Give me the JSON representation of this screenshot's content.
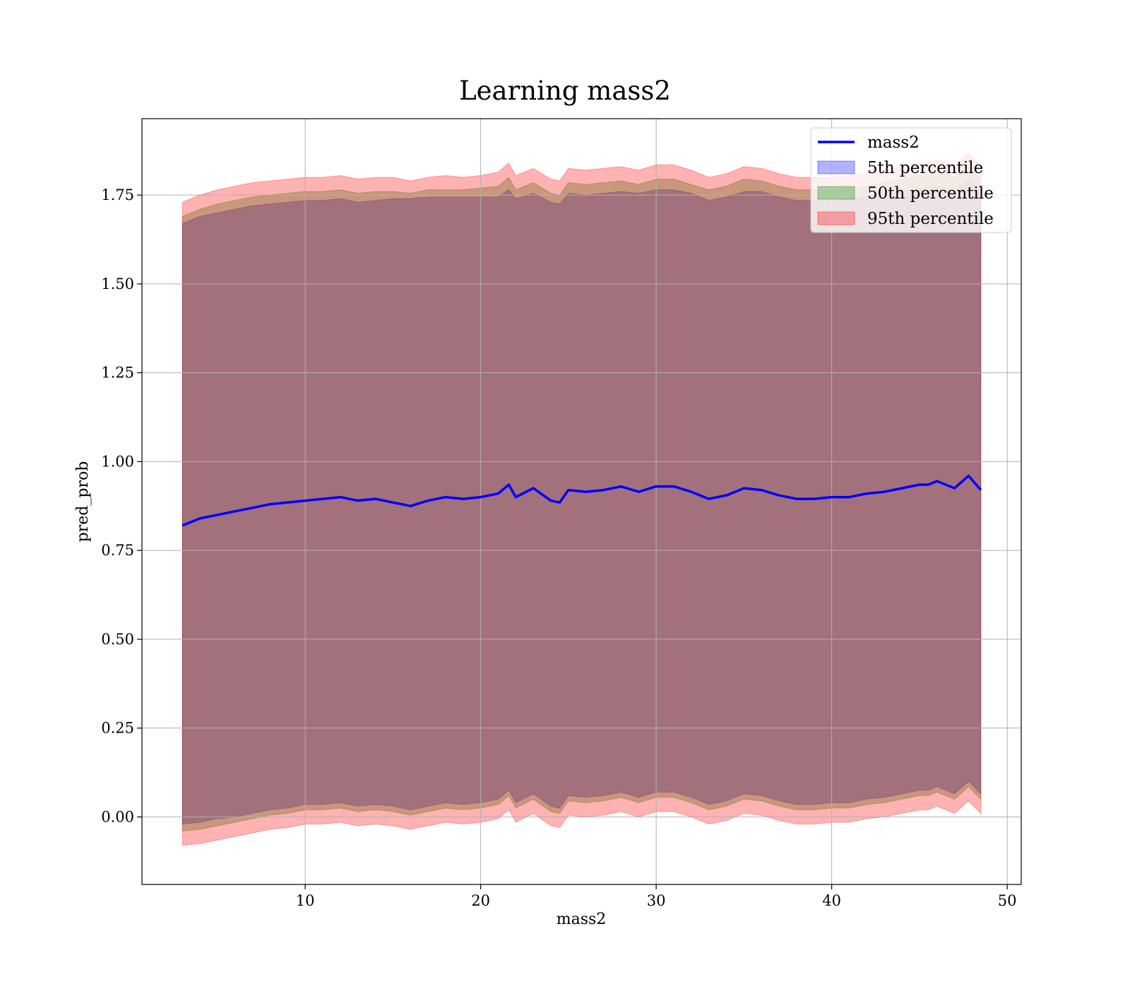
{
  "chart_data": {
    "type": "line",
    "title": "Learning mass2",
    "xlabel": "mass2",
    "ylabel": "pred_prob",
    "xlim": [
      0.7,
      50.8
    ],
    "ylim": [
      -0.19,
      1.965
    ],
    "x_ticks": [
      10,
      20,
      30,
      40,
      50
    ],
    "y_ticks": [
      0.0,
      0.25,
      0.5,
      0.75,
      1.0,
      1.25,
      1.5,
      1.75
    ],
    "x_tick_labels": [
      "10",
      "20",
      "30",
      "40",
      "50"
    ],
    "y_tick_labels": [
      "0.00",
      "0.25",
      "0.50",
      "0.75",
      "1.00",
      "1.25",
      "1.50",
      "1.75"
    ],
    "grid": true,
    "legend_position": "top-right",
    "x": [
      3.0,
      4.0,
      5.0,
      6.0,
      7.0,
      8.0,
      9.0,
      10.0,
      11.0,
      12.0,
      13.0,
      14.0,
      15.0,
      16.0,
      17.0,
      18.0,
      19.0,
      20.0,
      21.0,
      21.6,
      22.0,
      23.0,
      24.0,
      24.5,
      25.0,
      26.0,
      27.0,
      28.0,
      29.0,
      30.0,
      31.0,
      32.0,
      33.0,
      34.0,
      35.0,
      36.0,
      37.0,
      38.0,
      39.0,
      40.0,
      41.0,
      42.0,
      43.0,
      44.0,
      45.0,
      45.5,
      46.0,
      47.0,
      47.8,
      48.5
    ],
    "series": [
      {
        "name": "mass2",
        "style": "line",
        "color": "#0000ff",
        "values": [
          0.82,
          0.84,
          0.85,
          0.86,
          0.87,
          0.88,
          0.885,
          0.89,
          0.895,
          0.9,
          0.89,
          0.895,
          0.885,
          0.875,
          0.89,
          0.9,
          0.895,
          0.9,
          0.91,
          0.935,
          0.9,
          0.925,
          0.89,
          0.885,
          0.92,
          0.915,
          0.92,
          0.93,
          0.915,
          0.93,
          0.93,
          0.915,
          0.895,
          0.905,
          0.925,
          0.92,
          0.905,
          0.895,
          0.895,
          0.9,
          0.9,
          0.91,
          0.915,
          0.925,
          0.935,
          0.935,
          0.945,
          0.925,
          0.96,
          0.92
        ]
      },
      {
        "name": "5th percentile",
        "style": "band",
        "color": "#0000ff",
        "upper": [
          1.67,
          1.69,
          1.7,
          1.71,
          1.72,
          1.725,
          1.73,
          1.735,
          1.735,
          1.74,
          1.73,
          1.735,
          1.74,
          1.74,
          1.745,
          1.745,
          1.745,
          1.745,
          1.745,
          1.765,
          1.74,
          1.755,
          1.73,
          1.725,
          1.755,
          1.75,
          1.755,
          1.76,
          1.755,
          1.765,
          1.765,
          1.755,
          1.735,
          1.745,
          1.76,
          1.76,
          1.745,
          1.735,
          1.735,
          1.735,
          1.74,
          1.745,
          1.75,
          1.76,
          1.77,
          1.77,
          1.775,
          1.76,
          1.795,
          1.76
        ],
        "lower": [
          -0.02,
          -0.015,
          -0.005,
          0.0,
          0.01,
          0.02,
          0.025,
          0.035,
          0.035,
          0.04,
          0.03,
          0.035,
          0.03,
          0.02,
          0.03,
          0.04,
          0.035,
          0.04,
          0.05,
          0.075,
          0.04,
          0.065,
          0.03,
          0.025,
          0.06,
          0.055,
          0.06,
          0.07,
          0.055,
          0.07,
          0.07,
          0.055,
          0.035,
          0.045,
          0.065,
          0.06,
          0.045,
          0.035,
          0.035,
          0.04,
          0.04,
          0.05,
          0.055,
          0.065,
          0.075,
          0.075,
          0.085,
          0.065,
          0.1,
          0.065
        ]
      },
      {
        "name": "50th percentile",
        "style": "band",
        "color": "#008000",
        "upper": [
          1.69,
          1.71,
          1.725,
          1.735,
          1.745,
          1.75,
          1.755,
          1.76,
          1.76,
          1.765,
          1.755,
          1.76,
          1.76,
          1.755,
          1.765,
          1.765,
          1.765,
          1.77,
          1.775,
          1.8,
          1.765,
          1.785,
          1.755,
          1.75,
          1.785,
          1.78,
          1.785,
          1.79,
          1.78,
          1.795,
          1.795,
          1.78,
          1.765,
          1.775,
          1.795,
          1.79,
          1.775,
          1.765,
          1.765,
          1.765,
          1.77,
          1.775,
          1.785,
          1.795,
          1.805,
          1.805,
          1.815,
          1.8,
          1.83,
          1.795
        ],
        "lower": [
          -0.04,
          -0.035,
          -0.025,
          -0.015,
          -0.005,
          0.005,
          0.01,
          0.02,
          0.02,
          0.025,
          0.015,
          0.02,
          0.015,
          0.005,
          0.015,
          0.025,
          0.02,
          0.025,
          0.035,
          0.06,
          0.025,
          0.05,
          0.015,
          0.01,
          0.045,
          0.04,
          0.045,
          0.055,
          0.04,
          0.055,
          0.055,
          0.04,
          0.02,
          0.03,
          0.05,
          0.045,
          0.03,
          0.02,
          0.02,
          0.025,
          0.025,
          0.035,
          0.04,
          0.05,
          0.06,
          0.06,
          0.07,
          0.05,
          0.085,
          0.05
        ]
      },
      {
        "name": "95th percentile",
        "style": "band",
        "color": "#ff0000",
        "upper": [
          1.73,
          1.75,
          1.765,
          1.775,
          1.785,
          1.79,
          1.795,
          1.8,
          1.8,
          1.805,
          1.795,
          1.8,
          1.8,
          1.79,
          1.8,
          1.805,
          1.8,
          1.805,
          1.815,
          1.84,
          1.805,
          1.825,
          1.795,
          1.79,
          1.825,
          1.82,
          1.825,
          1.83,
          1.82,
          1.835,
          1.835,
          1.82,
          1.8,
          1.81,
          1.83,
          1.825,
          1.81,
          1.8,
          1.8,
          1.8,
          1.805,
          1.815,
          1.82,
          1.83,
          1.84,
          1.84,
          1.85,
          1.835,
          1.87,
          1.83
        ],
        "lower": [
          -0.08,
          -0.075,
          -0.065,
          -0.055,
          -0.045,
          -0.035,
          -0.03,
          -0.02,
          -0.02,
          -0.015,
          -0.025,
          -0.02,
          -0.025,
          -0.035,
          -0.025,
          -0.015,
          -0.02,
          -0.015,
          -0.005,
          0.02,
          -0.015,
          0.01,
          -0.025,
          -0.03,
          0.005,
          0.0,
          0.005,
          0.015,
          0.0,
          0.015,
          0.015,
          0.0,
          -0.02,
          -0.01,
          0.01,
          0.005,
          -0.01,
          -0.02,
          -0.02,
          -0.015,
          -0.015,
          -0.005,
          0.0,
          0.01,
          0.02,
          0.02,
          0.03,
          0.01,
          0.045,
          0.01
        ]
      }
    ],
    "colors": {
      "line": "#0000ff",
      "band_5th": "#0000ff",
      "band_50th": "#008000",
      "band_95th": "#ff0000",
      "grid": "#b0b0b0"
    }
  }
}
